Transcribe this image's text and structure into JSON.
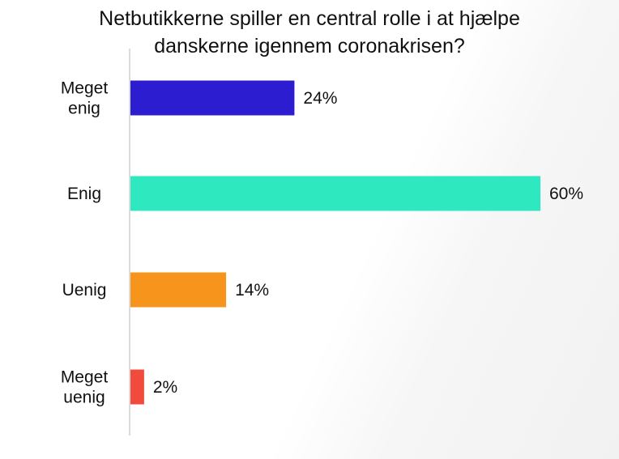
{
  "chart_data": {
    "type": "bar",
    "orientation": "horizontal",
    "title_lines": [
      "Netbutikkerne spiller en central rolle i at hjælpe",
      "danskerne igennem coronakrisen?"
    ],
    "categories": [
      [
        "Meget",
        "enig"
      ],
      [
        "Enig"
      ],
      [
        "Uenig"
      ],
      [
        "Meget",
        "uenig"
      ]
    ],
    "values": [
      24,
      60,
      14,
      2
    ],
    "value_labels": [
      "24%",
      "60%",
      "14%",
      "2%"
    ],
    "colors": [
      "#2c1dd1",
      "#2ee8c0",
      "#f6941c",
      "#f24b3e"
    ],
    "xlim": [
      0,
      60
    ],
    "xlabel": "",
    "ylabel": "",
    "grid": false,
    "legend": "none"
  }
}
